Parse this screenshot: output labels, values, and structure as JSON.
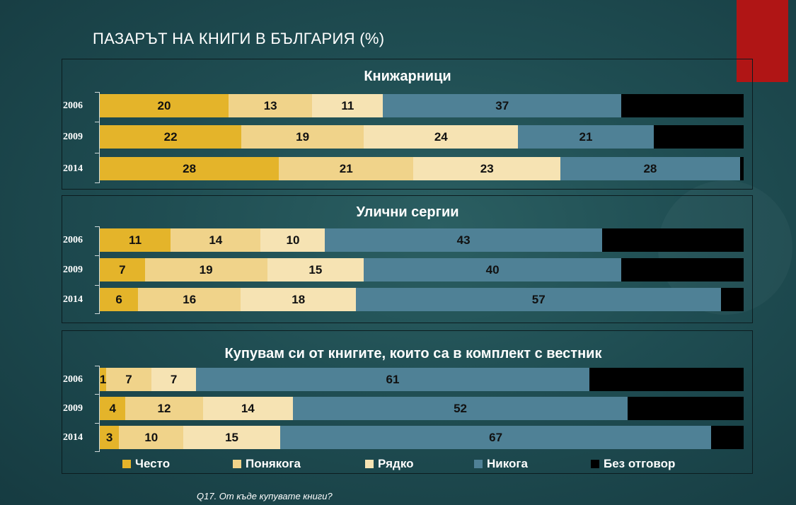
{
  "title": "ПАЗАРЪТ НА КНИГИ В БЪЛГАРИЯ (%)",
  "footnote": "Q17. От къде купувате книги?",
  "colors": {
    "Често": "#e4b42a",
    "Понякога": "#f0d38a",
    "Рядко": "#f6e3b3",
    "Никога": "#4f8196",
    "Без отговор": "#000000"
  },
  "chart_data": {
    "type": "bar",
    "orientation": "horizontal",
    "stacked": true,
    "xlim": [
      0,
      100
    ],
    "legend_position": "bottom",
    "series_names": [
      "Често",
      "Понякога",
      "Рядко",
      "Никога",
      "Без отговор"
    ],
    "panels": [
      {
        "title": "Книжарници",
        "rows": [
          {
            "year": "2006",
            "values": [
              20,
              13,
              11,
              37,
              19
            ],
            "labels": [
              "20",
              "13",
              "11",
              "37",
              ""
            ]
          },
          {
            "year": "2009",
            "values": [
              22,
              19,
              24,
              21,
              14
            ],
            "labels": [
              "22",
              "19",
              "24",
              "21",
              ""
            ]
          },
          {
            "year": "2014",
            "values": [
              28,
              21,
              23,
              28,
              0.6
            ],
            "labels": [
              "28",
              "21",
              "23",
              "28",
              ""
            ]
          }
        ]
      },
      {
        "title": "Улични сергии",
        "rows": [
          {
            "year": "2006",
            "values": [
              11,
              14,
              10,
              43,
              22
            ],
            "labels": [
              "11",
              "14",
              "10",
              "43",
              ""
            ]
          },
          {
            "year": "2009",
            "values": [
              7,
              19,
              15,
              40,
              19
            ],
            "labels": [
              "7",
              "19",
              "15",
              "40",
              ""
            ]
          },
          {
            "year": "2014",
            "values": [
              6,
              16,
              18,
              57,
              3.5
            ],
            "labels": [
              "6",
              "16",
              "18",
              "57",
              ""
            ]
          }
        ]
      },
      {
        "title": "Купувам си от книгите, които са в комплект с вестник",
        "rows": [
          {
            "year": "2006",
            "values": [
              1,
              7,
              7,
              61,
              24
            ],
            "labels": [
              "1",
              "7",
              "7",
              "61",
              ""
            ]
          },
          {
            "year": "2009",
            "values": [
              4,
              12,
              14,
              52,
              18
            ],
            "labels": [
              "4",
              "12",
              "14",
              "52",
              ""
            ]
          },
          {
            "year": "2014",
            "values": [
              3,
              10,
              15,
              67,
              5
            ],
            "labels": [
              "3",
              "10",
              "15",
              "67",
              ""
            ]
          }
        ]
      }
    ]
  }
}
